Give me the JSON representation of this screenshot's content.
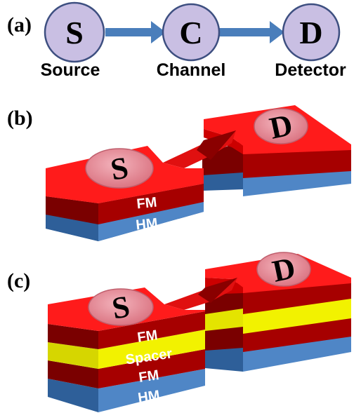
{
  "panels": {
    "a": {
      "label": "(a)",
      "nodes": [
        {
          "letter": "S",
          "caption": "Source"
        },
        {
          "letter": "C",
          "caption": "Channel"
        },
        {
          "letter": "D",
          "caption": "Detector"
        }
      ]
    },
    "b": {
      "label": "(b)",
      "source_letter": "S",
      "detector_letter": "D",
      "layers": [
        "FM",
        "HM"
      ]
    },
    "c": {
      "label": "(c)",
      "source_letter": "S",
      "detector_letter": "D",
      "layers": [
        "FM",
        "Spacer",
        "FM",
        "HM"
      ]
    }
  },
  "colors": {
    "node_fill": "#c9bfe3",
    "arrow": "#4a7ebb",
    "fm_top": "#ff1b1b",
    "fm_front": "#a60000",
    "fm_side": "#7a0000",
    "hm_front": "#4f86c6",
    "hm_side": "#2e5f99",
    "spacer_front": "#f2f200",
    "spacer_side": "#c9c900",
    "disk": "#e8909c"
  }
}
